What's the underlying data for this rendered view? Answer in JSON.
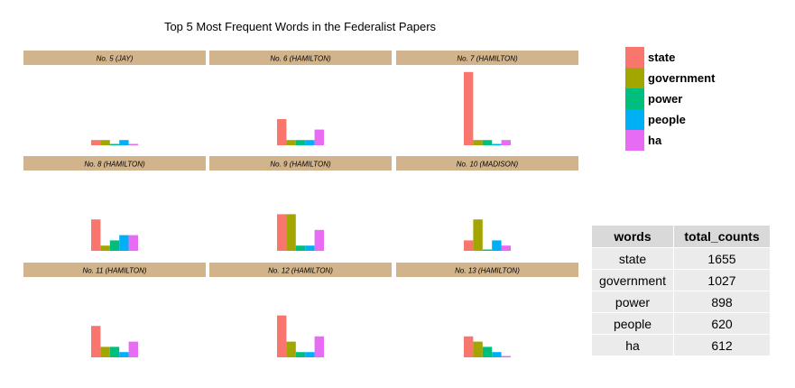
{
  "chart_data": {
    "type": "bar",
    "title": "Top 5 Most Frequent Words in the Federalist Papers",
    "categories": [
      "state",
      "government",
      "power",
      "people",
      "ha"
    ],
    "colors": {
      "state": "#F8766D",
      "government": "#A3A500",
      "power": "#00BF7D",
      "people": "#00B0F6",
      "ha": "#E76BF3"
    },
    "strip_color": "#D2B48C",
    "legend": {
      "placement": "right",
      "entries": [
        "state",
        "government",
        "power",
        "people",
        "ha"
      ]
    },
    "grid": false,
    "facets": [
      {
        "label": "No. 5 (JAY)",
        "values": [
          1,
          1,
          0,
          1,
          0
        ]
      },
      {
        "label": "No. 6 (HAMILTON)",
        "values": [
          5,
          1,
          1,
          1,
          3
        ]
      },
      {
        "label": "No. 7 (HAMILTON)",
        "values": [
          14,
          1,
          1,
          0,
          1
        ]
      },
      {
        "label": "No. 8 (HAMILTON)",
        "values": [
          6,
          1,
          2,
          3,
          3
        ]
      },
      {
        "label": "No. 9 (HAMILTON)",
        "values": [
          7,
          7,
          1,
          1,
          4
        ]
      },
      {
        "label": "No. 10 (MADISON)",
        "values": [
          2,
          6,
          0,
          2,
          1
        ]
      },
      {
        "label": "No. 11 (HAMILTON)",
        "values": [
          6,
          2,
          2,
          1,
          3
        ]
      },
      {
        "label": "No. 12 (HAMILTON)",
        "values": [
          8,
          3,
          1,
          1,
          4
        ]
      },
      {
        "label": "No. 13 (HAMILTON)",
        "values": [
          4,
          3,
          2,
          1,
          0
        ]
      }
    ],
    "ylim": [
      0,
      14
    ]
  },
  "table": {
    "headers": [
      "words",
      "total_counts"
    ],
    "rows": [
      [
        "state",
        "1655"
      ],
      [
        "government",
        "1027"
      ],
      [
        "power",
        "898"
      ],
      [
        "people",
        "620"
      ],
      [
        "ha",
        "612"
      ]
    ]
  }
}
